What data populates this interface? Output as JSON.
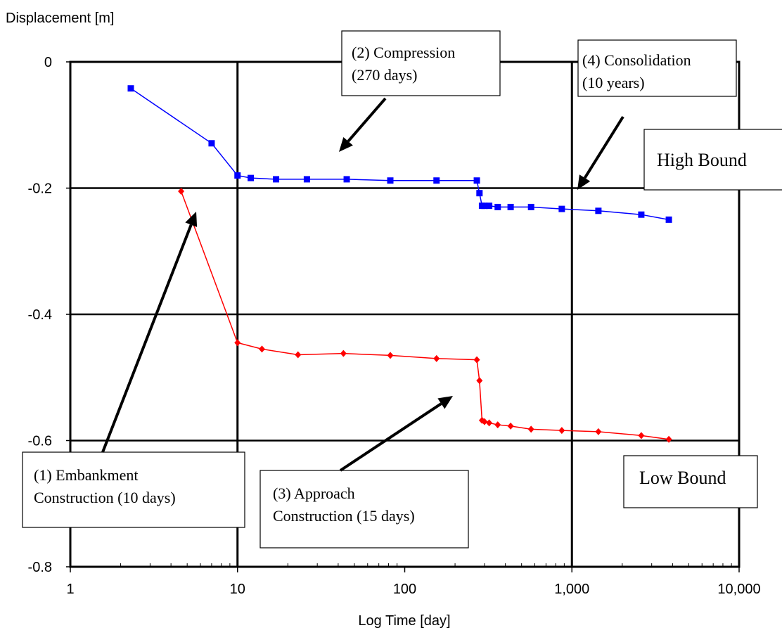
{
  "chart_data": {
    "type": "line",
    "ylabel": "Displacement [m]",
    "xlabel": "Log Time [day]",
    "xscale": "log",
    "xlim": [
      1,
      10000
    ],
    "ylim": [
      -0.8,
      0.0
    ],
    "x_ticks": [
      1,
      10,
      100,
      1000,
      10000
    ],
    "x_tick_labels": [
      "1",
      "10",
      "100",
      "1,000",
      "10,000"
    ],
    "y_ticks": [
      0,
      -0.2,
      -0.4,
      -0.6,
      -0.8
    ],
    "y_tick_labels": [
      "0",
      "-0.2",
      "-0.4",
      "-0.6",
      "-0.8"
    ],
    "legend": "none",
    "series": [
      {
        "color": "#0000ff",
        "marker": "square",
        "points": [
          [
            2.3,
            -0.042
          ],
          [
            7.0,
            -0.129
          ],
          [
            10,
            -0.18
          ],
          [
            12,
            -0.184
          ],
          [
            17,
            -0.186
          ],
          [
            26,
            -0.186
          ],
          [
            45,
            -0.186
          ],
          [
            82,
            -0.188
          ],
          [
            155,
            -0.188
          ],
          [
            270,
            -0.188
          ],
          [
            280,
            -0.208
          ],
          [
            290,
            -0.228
          ],
          [
            300,
            -0.228
          ],
          [
            320,
            -0.228
          ],
          [
            360,
            -0.23
          ],
          [
            430,
            -0.23
          ],
          [
            570,
            -0.23
          ],
          [
            870,
            -0.233
          ],
          [
            1440,
            -0.236
          ],
          [
            2600,
            -0.242
          ],
          [
            3800,
            -0.25
          ]
        ]
      },
      {
        "color": "#ff0000",
        "marker": "diamond",
        "points": [
          [
            4.6,
            -0.205
          ],
          [
            10,
            -0.445
          ],
          [
            14,
            -0.455
          ],
          [
            23,
            -0.464
          ],
          [
            43,
            -0.462
          ],
          [
            82,
            -0.465
          ],
          [
            155,
            -0.47
          ],
          [
            270,
            -0.472
          ],
          [
            280,
            -0.505
          ],
          [
            290,
            -0.568
          ],
          [
            300,
            -0.57
          ],
          [
            320,
            -0.572
          ],
          [
            360,
            -0.575
          ],
          [
            430,
            -0.577
          ],
          [
            570,
            -0.582
          ],
          [
            870,
            -0.584
          ],
          [
            1440,
            -0.586
          ],
          [
            2600,
            -0.592
          ],
          [
            3800,
            -0.598
          ]
        ]
      }
    ],
    "annotations": [
      {
        "id": "compression",
        "lines": [
          "(2) Compression",
          "(270 days)"
        ]
      },
      {
        "id": "consolidation",
        "lines": [
          "(4) Consolidation",
          "(10 years)"
        ]
      },
      {
        "id": "high-bound",
        "lines": [
          "High Bound"
        ]
      },
      {
        "id": "low-bound",
        "lines": [
          "Low Bound"
        ]
      },
      {
        "id": "embankment",
        "lines": [
          "(1) Embankment",
          "Construction (10 days)"
        ]
      },
      {
        "id": "approach",
        "lines": [
          "(3) Approach",
          "Construction (15 days)"
        ]
      }
    ]
  }
}
